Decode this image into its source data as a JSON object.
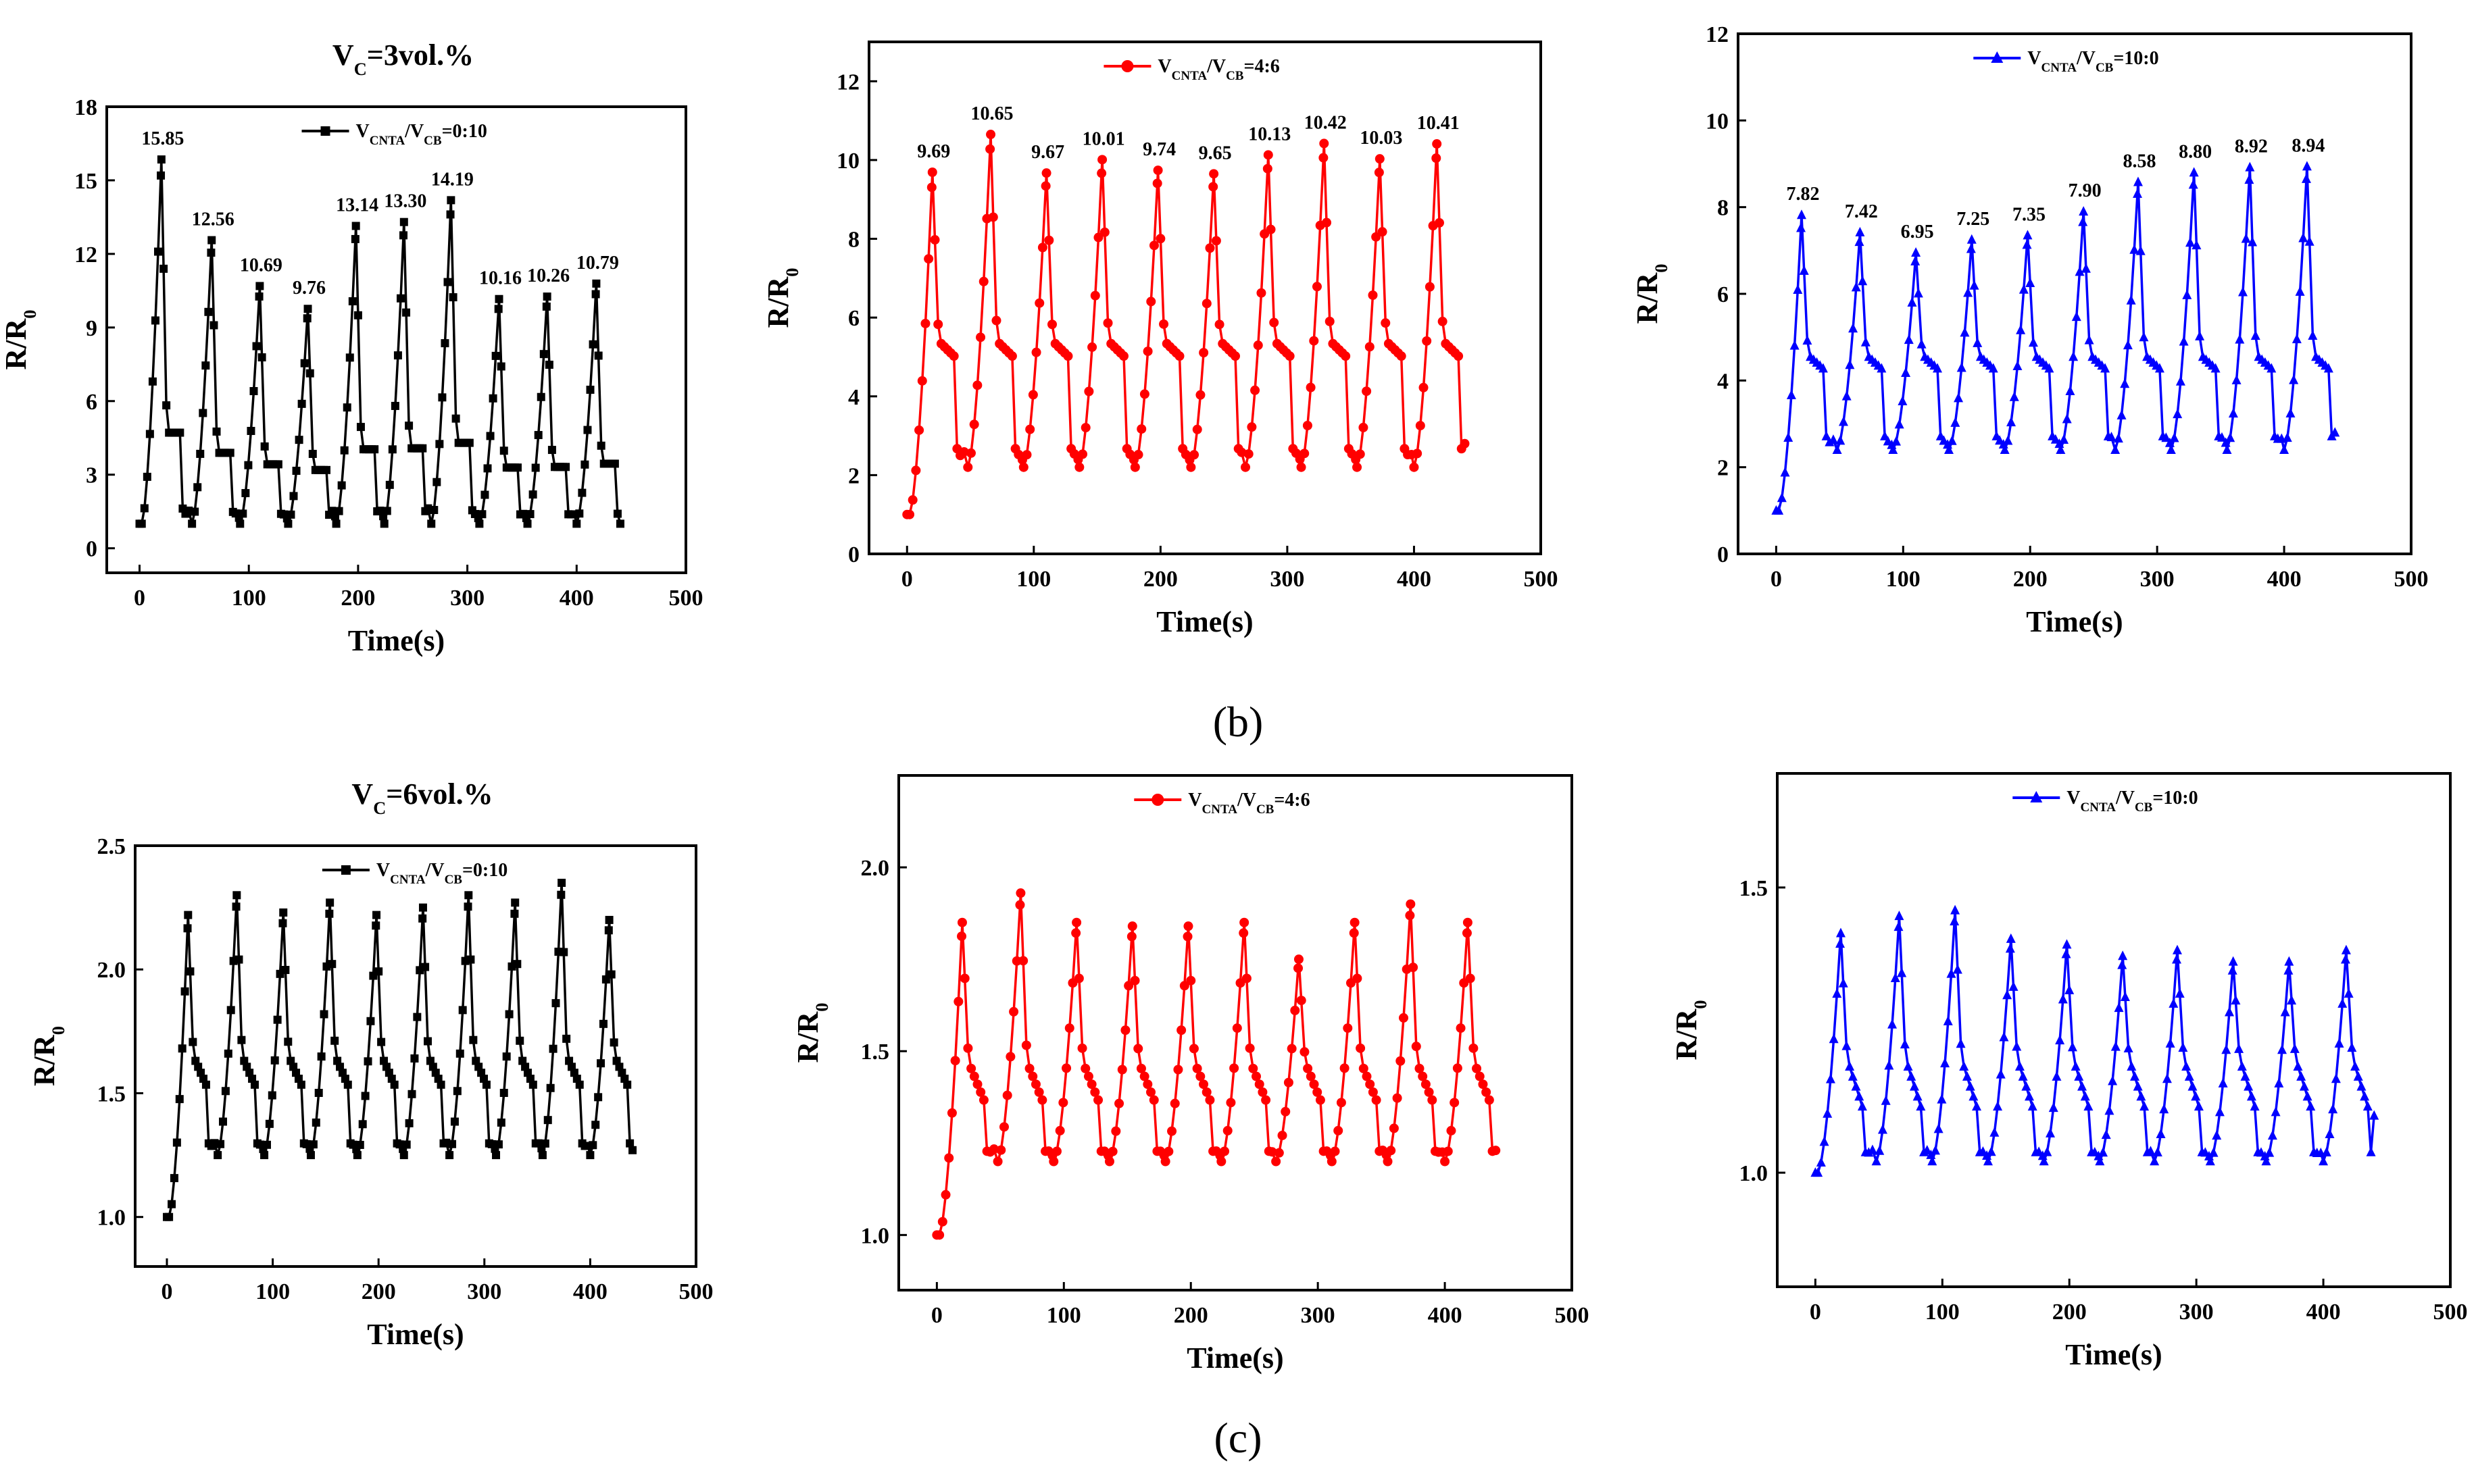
{
  "figure_labels": {
    "b": "(b)",
    "c": "(c)"
  },
  "chart_data": [
    {
      "id": "b-cb",
      "type": "line",
      "row": "b",
      "title": "V_C=3vol.%",
      "legend": "V_CNTA/V_CB=0:10",
      "color": "#000000",
      "marker": "square",
      "xlabel": "Time(s)",
      "ylabel": "R/R_0",
      "xlim": [
        -30,
        500
      ],
      "ylim": [
        -1,
        18
      ],
      "xticks": [
        0,
        100,
        200,
        300,
        400,
        500
      ],
      "yticks": [
        0,
        3,
        6,
        9,
        12,
        15,
        18
      ],
      "baseline": 1.0,
      "valley": 1.0,
      "tail": 1.0,
      "peak_times": [
        20,
        66,
        110,
        154,
        198,
        242,
        285,
        329,
        373,
        418
      ],
      "peaks": [
        15.85,
        12.56,
        10.69,
        9.76,
        13.14,
        13.3,
        14.19,
        10.16,
        10.26,
        10.79
      ],
      "annotations": [
        "15.85",
        "12.56",
        "10.69",
        "9.76",
        "13.14",
        "13.30",
        "14.19",
        "10.16",
        "10.26",
        "10.79"
      ],
      "x_end": 440
    },
    {
      "id": "b-mix",
      "type": "line",
      "row": "b",
      "title": "",
      "legend": "V_CNTA/V_CB=4:6",
      "color": "#ff0000",
      "marker": "circle",
      "xlabel": "Time(s)",
      "ylabel": "R/R_0",
      "xlim": [
        -30,
        500
      ],
      "ylim": [
        0,
        13
      ],
      "xticks": [
        0,
        100,
        200,
        300,
        400,
        500
      ],
      "yticks": [
        0,
        2,
        4,
        6,
        8,
        10,
        12
      ],
      "baseline": 1.0,
      "valley": 2.2,
      "plateau": 5.4,
      "tail": 2.8,
      "peak_times": [
        20,
        66,
        110,
        154,
        198,
        242,
        285,
        329,
        373,
        418
      ],
      "peaks": [
        9.69,
        10.65,
        9.67,
        10.01,
        9.74,
        9.65,
        10.13,
        10.42,
        10.03,
        10.41
      ],
      "annotations": [
        "9.69",
        "10.65",
        "9.67",
        "10.01",
        "9.74",
        "9.65",
        "10.13",
        "10.42",
        "10.03",
        "10.41"
      ],
      "x_end": 440
    },
    {
      "id": "b-cnta",
      "type": "line",
      "row": "b",
      "title": "",
      "legend": "V_CNTA/V_CB=10:0",
      "color": "#0000ff",
      "marker": "triangle",
      "xlabel": "Time(s)",
      "ylabel": "R/R_0",
      "xlim": [
        -30,
        500
      ],
      "ylim": [
        0,
        12
      ],
      "xticks": [
        0,
        100,
        200,
        300,
        400,
        500
      ],
      "yticks": [
        0,
        2,
        4,
        6,
        8,
        10,
        12
      ],
      "baseline": 1.0,
      "valley": 2.4,
      "plateau": 4.6,
      "tail": 2.8,
      "peak_times": [
        20,
        66,
        110,
        154,
        198,
        242,
        285,
        329,
        373,
        418
      ],
      "peaks": [
        7.82,
        7.42,
        6.95,
        7.25,
        7.35,
        7.9,
        8.58,
        8.8,
        8.92,
        8.94
      ],
      "annotations": [
        "7.82",
        "7.42",
        "6.95",
        "7.25",
        "7.35",
        "7.90",
        "8.58",
        "8.80",
        "8.92",
        "8.94"
      ],
      "x_end": 440
    },
    {
      "id": "c-cb",
      "type": "line",
      "row": "c",
      "title": "V_C=6vol.%",
      "legend": "V_CNTA/V_CB=0:10",
      "color": "#000000",
      "marker": "square",
      "xlabel": "Time(s)",
      "ylabel": "R/R_0",
      "xlim": [
        -30,
        500
      ],
      "ylim": [
        0.8,
        2.5
      ],
      "xticks": [
        0,
        100,
        200,
        300,
        400,
        500
      ],
      "yticks": [
        1.0,
        1.5,
        2.0,
        2.5
      ],
      "baseline": 1.0,
      "valley": 1.25,
      "plateau": 1.65,
      "tail": 1.27,
      "peak_times": [
        20,
        66,
        110,
        154,
        198,
        242,
        285,
        329,
        373,
        418
      ],
      "peaks": [
        2.22,
        2.3,
        2.23,
        2.27,
        2.22,
        2.25,
        2.3,
        2.27,
        2.35,
        2.2
      ],
      "annotations": [],
      "x_end": 440
    },
    {
      "id": "c-mix",
      "type": "line",
      "row": "c",
      "title": "",
      "legend": "V_CNTA/V_CB=4:6",
      "color": "#ff0000",
      "marker": "circle",
      "xlabel": "Time(s)",
      "ylabel": "R/R_0",
      "xlim": [
        -30,
        500
      ],
      "ylim": [
        0.85,
        2.25
      ],
      "xticks": [
        0,
        100,
        200,
        300,
        400,
        500
      ],
      "yticks": [
        1.0,
        1.5,
        2.0
      ],
      "baseline": 1.0,
      "valley": 1.2,
      "plateau": 1.47,
      "tail": 1.23,
      "peak_times": [
        20,
        66,
        110,
        154,
        198,
        242,
        285,
        329,
        373,
        418
      ],
      "peaks": [
        1.85,
        1.93,
        1.85,
        1.84,
        1.84,
        1.85,
        1.75,
        1.85,
        1.9,
        1.85
      ],
      "annotations": [],
      "x_end": 440
    },
    {
      "id": "c-cnta",
      "type": "line",
      "row": "c",
      "title": "",
      "legend": "V_CNTA/V_CB=10:0",
      "color": "#0000ff",
      "marker": "triangle",
      "xlabel": "Time(s)",
      "ylabel": "R/R_0",
      "xlim": [
        -30,
        500
      ],
      "ylim": [
        0.8,
        1.7
      ],
      "xticks": [
        0,
        100,
        200,
        300,
        400,
        500
      ],
      "yticks": [
        1.0,
        1.5
      ],
      "baseline": 1.0,
      "valley": 1.02,
      "plateau": 1.2,
      "tail": 1.1,
      "peak_times": [
        20,
        66,
        110,
        154,
        198,
        242,
        285,
        329,
        373,
        418
      ],
      "peaks": [
        1.42,
        1.45,
        1.46,
        1.41,
        1.4,
        1.38,
        1.39,
        1.37,
        1.37,
        1.39
      ],
      "annotations": [],
      "x_end": 440
    }
  ]
}
